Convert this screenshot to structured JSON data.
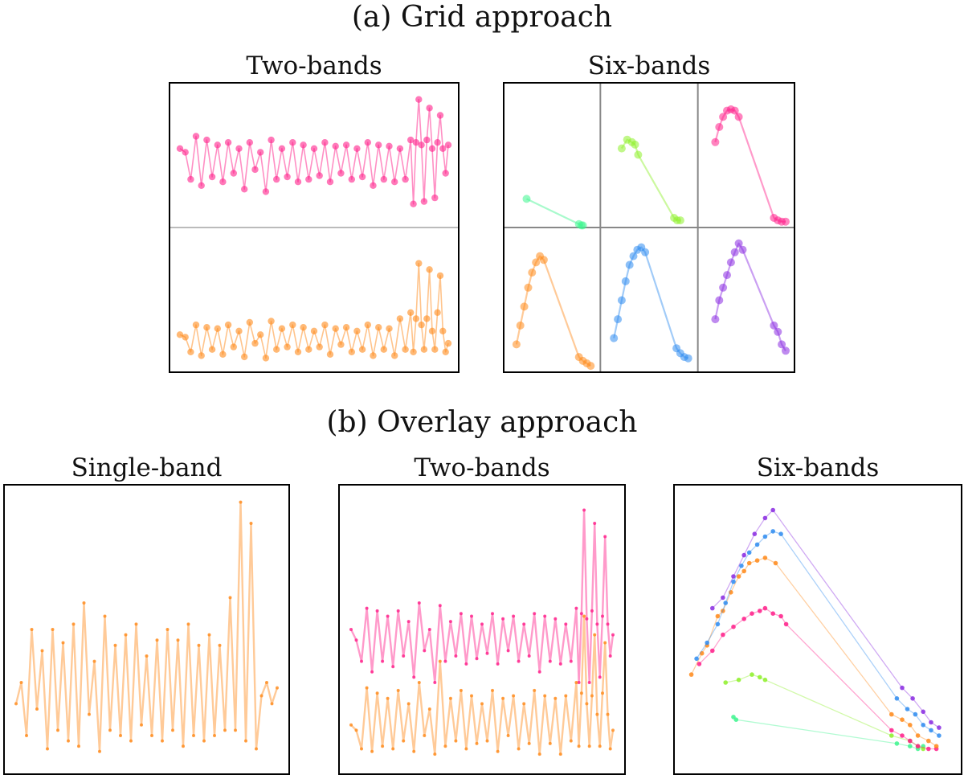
{
  "section_a": {
    "title": "(a) Grid approach",
    "panel_two_title": "Two-bands",
    "panel_six_title": "Six-bands"
  },
  "section_b": {
    "title": "(b) Overlay approach",
    "panel_single_title": "Single-band",
    "panel_two_title": "Two-bands",
    "panel_six_title": "Six-bands"
  },
  "colors": {
    "band_u": "#3df58e",
    "band_g": "#8ef02a",
    "band_r": "#ff1f8a",
    "band_i": "#ff8a1a",
    "band_z": "#2f8cf0",
    "band_y": "#8a2be2"
  },
  "chart_data": [
    {
      "type": "line",
      "panel": "grid-two-bands",
      "layout": "grid",
      "bands": [
        {
          "color_key": "band_r",
          "x": [
            0.0,
            0.02,
            0.04,
            0.06,
            0.08,
            0.1,
            0.12,
            0.14,
            0.16,
            0.18,
            0.2,
            0.22,
            0.24,
            0.26,
            0.28,
            0.3,
            0.32,
            0.34,
            0.36,
            0.38,
            0.4,
            0.42,
            0.44,
            0.46,
            0.48,
            0.5,
            0.52,
            0.54,
            0.56,
            0.58,
            0.6,
            0.62,
            0.64,
            0.66,
            0.68,
            0.7,
            0.72,
            0.74,
            0.76,
            0.78,
            0.8,
            0.82,
            0.84,
            0.86,
            0.87,
            0.88,
            0.89,
            0.9,
            0.91,
            0.92,
            0.93,
            0.94,
            0.95,
            0.96,
            0.97,
            0.98,
            0.99,
            1.0
          ],
          "y": [
            0.55,
            0.52,
            0.3,
            0.65,
            0.25,
            0.62,
            0.32,
            0.58,
            0.28,
            0.6,
            0.35,
            0.55,
            0.22,
            0.6,
            0.38,
            0.52,
            0.2,
            0.62,
            0.3,
            0.55,
            0.32,
            0.6,
            0.28,
            0.58,
            0.3,
            0.55,
            0.33,
            0.6,
            0.28,
            0.57,
            0.35,
            0.58,
            0.3,
            0.55,
            0.32,
            0.6,
            0.25,
            0.58,
            0.3,
            0.57,
            0.28,
            0.55,
            0.3,
            0.62,
            0.1,
            0.6,
            0.95,
            0.58,
            0.12,
            0.62,
            0.88,
            0.55,
            0.15,
            0.6,
            0.82,
            0.55,
            0.35,
            0.58
          ]
        },
        {
          "color_key": "band_i",
          "x": [
            0.0,
            0.02,
            0.04,
            0.06,
            0.08,
            0.1,
            0.12,
            0.14,
            0.16,
            0.18,
            0.2,
            0.22,
            0.24,
            0.26,
            0.28,
            0.3,
            0.32,
            0.34,
            0.36,
            0.38,
            0.4,
            0.42,
            0.44,
            0.46,
            0.48,
            0.5,
            0.52,
            0.54,
            0.56,
            0.58,
            0.6,
            0.62,
            0.64,
            0.66,
            0.68,
            0.7,
            0.72,
            0.74,
            0.76,
            0.78,
            0.8,
            0.82,
            0.84,
            0.86,
            0.87,
            0.88,
            0.89,
            0.9,
            0.91,
            0.92,
            0.93,
            0.94,
            0.95,
            0.96,
            0.97,
            0.98,
            0.99,
            1.0
          ],
          "y": [
            0.22,
            0.2,
            0.08,
            0.3,
            0.05,
            0.28,
            0.1,
            0.27,
            0.06,
            0.3,
            0.12,
            0.25,
            0.04,
            0.32,
            0.15,
            0.22,
            0.03,
            0.33,
            0.1,
            0.27,
            0.12,
            0.3,
            0.08,
            0.28,
            0.1,
            0.25,
            0.12,
            0.3,
            0.06,
            0.27,
            0.14,
            0.28,
            0.08,
            0.25,
            0.1,
            0.3,
            0.05,
            0.28,
            0.1,
            0.27,
            0.05,
            0.35,
            0.1,
            0.4,
            0.08,
            0.35,
            0.8,
            0.3,
            0.1,
            0.35,
            0.75,
            0.25,
            0.1,
            0.4,
            0.7,
            0.25,
            0.08,
            0.15
          ]
        }
      ]
    },
    {
      "type": "line",
      "panel": "grid-six-bands",
      "layout": "grid",
      "bands": [
        {
          "color_key": "band_u",
          "x": [
            0.18,
            0.85,
            0.88,
            0.9
          ],
          "y": [
            0.15,
            -0.05,
            -0.06,
            -0.06
          ]
        },
        {
          "color_key": "band_g",
          "x": [
            0.15,
            0.22,
            0.28,
            0.32,
            0.36,
            0.82,
            0.86,
            0.9
          ],
          "y": [
            0.55,
            0.62,
            0.6,
            0.58,
            0.5,
            0.0,
            -0.02,
            -0.02
          ]
        },
        {
          "color_key": "band_r",
          "x": [
            0.1,
            0.15,
            0.2,
            0.25,
            0.3,
            0.35,
            0.4,
            0.85,
            0.9,
            0.95,
            1.0
          ],
          "y": [
            0.6,
            0.72,
            0.8,
            0.85,
            0.86,
            0.85,
            0.8,
            0.0,
            -0.02,
            -0.03,
            -0.03
          ]
        },
        {
          "color_key": "band_i",
          "x": [
            0.05,
            0.1,
            0.15,
            0.2,
            0.25,
            0.3,
            0.35,
            0.4,
            0.85,
            0.9,
            0.95,
            1.0
          ],
          "y": [
            0.15,
            0.3,
            0.45,
            0.6,
            0.72,
            0.8,
            0.85,
            0.82,
            0.05,
            0.02,
            0.0,
            -0.02
          ]
        },
        {
          "color_key": "band_z",
          "x": [
            0.05,
            0.1,
            0.15,
            0.2,
            0.25,
            0.3,
            0.35,
            0.4,
            0.45,
            0.85,
            0.9,
            0.95,
            1.0
          ],
          "y": [
            0.2,
            0.35,
            0.5,
            0.65,
            0.78,
            0.85,
            0.9,
            0.92,
            0.88,
            0.12,
            0.08,
            0.05,
            0.04
          ]
        },
        {
          "color_key": "band_y",
          "x": [
            0.1,
            0.15,
            0.2,
            0.25,
            0.3,
            0.35,
            0.4,
            0.45,
            0.85,
            0.9,
            0.95,
            1.0
          ],
          "y": [
            0.35,
            0.5,
            0.6,
            0.7,
            0.8,
            0.88,
            0.95,
            0.9,
            0.3,
            0.25,
            0.15,
            0.1
          ]
        }
      ]
    },
    {
      "type": "line",
      "panel": "overlay-single-band",
      "layout": "overlay",
      "bands": [
        {
          "color_key": "band_i",
          "x": [
            0.0,
            0.02,
            0.04,
            0.06,
            0.08,
            0.1,
            0.12,
            0.14,
            0.16,
            0.18,
            0.2,
            0.22,
            0.24,
            0.26,
            0.28,
            0.3,
            0.32,
            0.34,
            0.36,
            0.38,
            0.4,
            0.42,
            0.44,
            0.46,
            0.48,
            0.5,
            0.52,
            0.54,
            0.56,
            0.58,
            0.6,
            0.62,
            0.64,
            0.66,
            0.68,
            0.7,
            0.72,
            0.74,
            0.76,
            0.78,
            0.8,
            0.82,
            0.84,
            0.86,
            0.88,
            0.9,
            0.92,
            0.94,
            0.96,
            0.98,
            1.0
          ],
          "y": [
            0.22,
            0.3,
            0.1,
            0.5,
            0.2,
            0.42,
            0.05,
            0.5,
            0.12,
            0.45,
            0.08,
            0.52,
            0.06,
            0.6,
            0.18,
            0.38,
            0.04,
            0.55,
            0.12,
            0.44,
            0.1,
            0.48,
            0.08,
            0.52,
            0.14,
            0.4,
            0.1,
            0.46,
            0.08,
            0.5,
            0.12,
            0.46,
            0.06,
            0.52,
            0.1,
            0.44,
            0.08,
            0.48,
            0.1,
            0.44,
            0.12,
            0.62,
            0.12,
            0.98,
            0.08,
            0.9,
            0.05,
            0.25,
            0.3,
            0.22,
            0.28
          ]
        }
      ]
    },
    {
      "type": "line",
      "panel": "overlay-two-bands",
      "layout": "overlay",
      "bands": [
        {
          "color_key": "band_r",
          "x": [
            0.0,
            0.02,
            0.04,
            0.06,
            0.08,
            0.1,
            0.12,
            0.14,
            0.16,
            0.18,
            0.2,
            0.22,
            0.24,
            0.26,
            0.28,
            0.3,
            0.32,
            0.34,
            0.36,
            0.38,
            0.4,
            0.42,
            0.44,
            0.46,
            0.48,
            0.5,
            0.52,
            0.54,
            0.56,
            0.58,
            0.6,
            0.62,
            0.64,
            0.66,
            0.68,
            0.7,
            0.72,
            0.74,
            0.76,
            0.78,
            0.8,
            0.82,
            0.84,
            0.86,
            0.87,
            0.88,
            0.89,
            0.9,
            0.91,
            0.92,
            0.93,
            0.94,
            0.95,
            0.96,
            0.97,
            0.98,
            0.99,
            1.0
          ],
          "y": [
            0.5,
            0.46,
            0.38,
            0.58,
            0.34,
            0.57,
            0.38,
            0.55,
            0.36,
            0.57,
            0.4,
            0.53,
            0.32,
            0.6,
            0.42,
            0.5,
            0.3,
            0.59,
            0.38,
            0.53,
            0.4,
            0.56,
            0.37,
            0.55,
            0.39,
            0.52,
            0.41,
            0.56,
            0.37,
            0.54,
            0.42,
            0.55,
            0.38,
            0.52,
            0.4,
            0.56,
            0.34,
            0.55,
            0.38,
            0.54,
            0.37,
            0.52,
            0.38,
            0.58,
            0.3,
            0.56,
            0.95,
            0.54,
            0.3,
            0.57,
            0.9,
            0.52,
            0.32,
            0.55,
            0.85,
            0.52,
            0.4,
            0.48
          ]
        },
        {
          "color_key": "band_i",
          "x": [
            0.0,
            0.02,
            0.04,
            0.06,
            0.08,
            0.1,
            0.12,
            0.14,
            0.16,
            0.18,
            0.2,
            0.22,
            0.24,
            0.26,
            0.28,
            0.3,
            0.32,
            0.34,
            0.36,
            0.38,
            0.4,
            0.42,
            0.44,
            0.46,
            0.48,
            0.5,
            0.52,
            0.54,
            0.56,
            0.58,
            0.6,
            0.62,
            0.64,
            0.66,
            0.68,
            0.7,
            0.72,
            0.74,
            0.76,
            0.78,
            0.8,
            0.82,
            0.84,
            0.86,
            0.87,
            0.88,
            0.89,
            0.9,
            0.91,
            0.92,
            0.93,
            0.94,
            0.95,
            0.96,
            0.97,
            0.98,
            0.99,
            1.0
          ],
          "y": [
            0.14,
            0.12,
            0.05,
            0.28,
            0.04,
            0.26,
            0.06,
            0.24,
            0.05,
            0.27,
            0.08,
            0.22,
            0.04,
            0.3,
            0.1,
            0.2,
            0.03,
            0.38,
            0.06,
            0.24,
            0.08,
            0.27,
            0.05,
            0.25,
            0.07,
            0.22,
            0.08,
            0.27,
            0.04,
            0.24,
            0.1,
            0.25,
            0.05,
            0.22,
            0.07,
            0.27,
            0.03,
            0.25,
            0.07,
            0.24,
            0.03,
            0.25,
            0.08,
            0.3,
            0.06,
            0.26,
            0.55,
            0.22,
            0.06,
            0.25,
            0.48,
            0.18,
            0.06,
            0.26,
            0.45,
            0.18,
            0.05,
            0.12
          ]
        }
      ]
    },
    {
      "type": "line",
      "panel": "overlay-six-bands",
      "layout": "overlay",
      "bands": [
        {
          "color_key": "band_u",
          "x": [
            0.18,
            0.19,
            0.8,
            0.85,
            0.88,
            0.9
          ],
          "y": [
            0.17,
            0.16,
            0.07,
            0.06,
            0.05,
            0.06
          ]
        },
        {
          "color_key": "band_g",
          "x": [
            0.15,
            0.2,
            0.25,
            0.28,
            0.3,
            0.78,
            0.85,
            0.88,
            0.9
          ],
          "y": [
            0.3,
            0.31,
            0.33,
            0.32,
            0.31,
            0.1,
            0.08,
            0.06,
            0.05
          ]
        },
        {
          "color_key": "band_r",
          "x": [
            0.05,
            0.1,
            0.14,
            0.18,
            0.22,
            0.25,
            0.28,
            0.3,
            0.33,
            0.36,
            0.38,
            0.78,
            0.82,
            0.85,
            0.88,
            0.92,
            0.95
          ],
          "y": [
            0.37,
            0.42,
            0.48,
            0.51,
            0.54,
            0.56,
            0.57,
            0.58,
            0.56,
            0.55,
            0.52,
            0.12,
            0.1,
            0.08,
            0.06,
            0.05,
            0.05
          ]
        },
        {
          "color_key": "band_i",
          "x": [
            0.02,
            0.06,
            0.08,
            0.12,
            0.14,
            0.17,
            0.2,
            0.22,
            0.24,
            0.27,
            0.3,
            0.34,
            0.78,
            0.82,
            0.85,
            0.88,
            0.92,
            0.95
          ],
          "y": [
            0.33,
            0.41,
            0.44,
            0.55,
            0.57,
            0.64,
            0.7,
            0.72,
            0.75,
            0.76,
            0.77,
            0.75,
            0.18,
            0.16,
            0.14,
            0.1,
            0.08,
            0.06
          ]
        },
        {
          "color_key": "band_z",
          "x": [
            0.04,
            0.08,
            0.12,
            0.15,
            0.18,
            0.21,
            0.24,
            0.27,
            0.3,
            0.33,
            0.36,
            0.8,
            0.84,
            0.87,
            0.9,
            0.93,
            0.96
          ],
          "y": [
            0.39,
            0.45,
            0.52,
            0.6,
            0.68,
            0.74,
            0.79,
            0.82,
            0.85,
            0.87,
            0.86,
            0.24,
            0.2,
            0.18,
            0.14,
            0.12,
            0.1
          ]
        },
        {
          "color_key": "band_y",
          "x": [
            0.1,
            0.14,
            0.18,
            0.22,
            0.26,
            0.3,
            0.33,
            0.82,
            0.86,
            0.9,
            0.93,
            0.96
          ],
          "y": [
            0.58,
            0.62,
            0.7,
            0.78,
            0.86,
            0.92,
            0.95,
            0.28,
            0.24,
            0.19,
            0.15,
            0.13
          ]
        }
      ]
    }
  ]
}
